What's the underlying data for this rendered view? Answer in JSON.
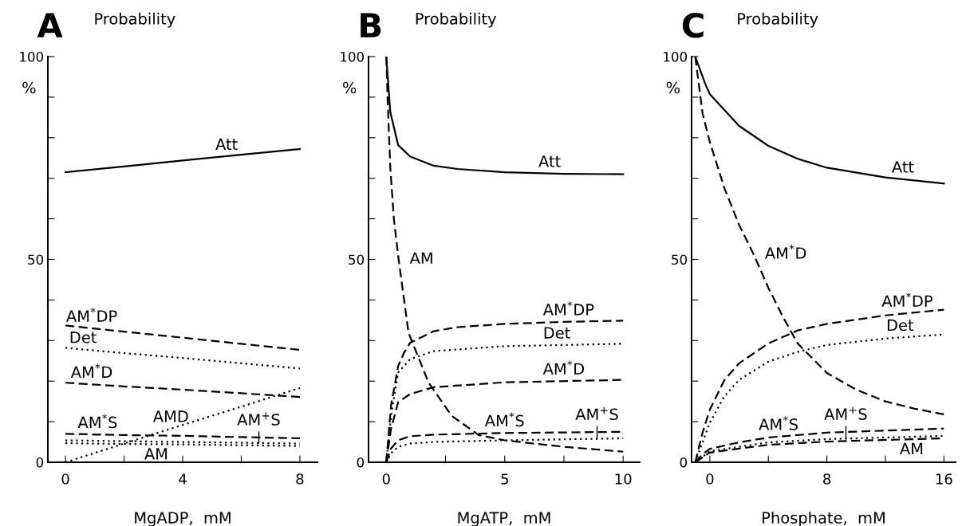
{
  "chart_data": [
    {
      "type": "line",
      "title": "A",
      "subtitle": "Probability",
      "xlabel": "MgADP,  mM",
      "ylabel": "%",
      "xlim": [
        -0.6,
        8.6
      ],
      "ylim": [
        0,
        100
      ],
      "xticks": [
        0,
        {
          "value": 2,
          "label": null
        },
        4,
        {
          "value": 6,
          "label": null
        },
        8
      ],
      "yticks": [
        0,
        {
          "value": 10,
          "label": null
        },
        {
          "value": 20,
          "label": null
        },
        {
          "value": 30,
          "label": null
        },
        {
          "value": 40,
          "label": null
        },
        50,
        {
          "value": 60,
          "label": null
        },
        {
          "value": 70,
          "label": null
        },
        {
          "value": 80,
          "label": null
        },
        {
          "value": 90,
          "label": null
        },
        100
      ],
      "grid": false,
      "x": [
        0,
        2,
        4,
        6,
        8
      ],
      "series": [
        {
          "color": "#000000",
          "line_style": "solid",
          "values": [
            71.5,
            72.9,
            74.4,
            75.8,
            77.2
          ]
        },
        {
          "color": "#000000",
          "line_style": "dashed",
          "values": [
            33.7,
            32.2,
            30.7,
            29.2,
            27.7
          ]
        },
        {
          "color": "#000000",
          "line_style": "dotted",
          "values": [
            28.2,
            26.9,
            25.7,
            24.4,
            23.1
          ]
        },
        {
          "color": "#000000",
          "line_style": "dashed",
          "values": [
            19.6,
            18.7,
            17.9,
            17.0,
            16.1
          ]
        },
        {
          "color": "#000000",
          "line_style": "dotted",
          "values": [
            0,
            4.6,
            9.2,
            13.7,
            18.3
          ]
        },
        {
          "color": "#000000",
          "line_style": "dashed",
          "values": [
            7.0,
            6.7,
            6.5,
            6.2,
            5.9
          ]
        },
        {
          "color": "#000000",
          "line_style": "dotted",
          "values": [
            5.4,
            5.2,
            5.0,
            4.8,
            4.6
          ]
        },
        {
          "color": "#000000",
          "line_style": "dotted",
          "values": [
            4.7,
            4.5,
            4.4,
            4.2,
            4.0
          ]
        }
      ],
      "annotations": [
        {
          "text": "Att",
          "x": 5.5,
          "y": 75.4
        },
        {
          "text": "AM$^{*}$DP",
          "x": 0.9,
          "y": 33.0
        },
        {
          "text": "Det",
          "x": 0.6,
          "y": 27.8
        },
        {
          "text": "AM$^{*}$D",
          "x": 0.9,
          "y": 19.2
        },
        {
          "text": "AMD",
          "x": 3.6,
          "y": 8.3
        },
        {
          "text": "AM$^{*}$S",
          "x": 1.1,
          "y": 6.8
        },
        {
          "text": "AM$^{+}$S",
          "x": 6.6,
          "y": 4.7
        },
        {
          "text": "AM",
          "x": 3.1,
          "y": 4.4
        }
      ]
    },
    {
      "type": "line",
      "title": "B",
      "subtitle": "Probability",
      "xlabel": "MgATP,  mM",
      "ylabel": "%",
      "xlim": [
        -0.75,
        10.7
      ],
      "ylim": [
        0,
        100
      ],
      "xticks": [
        0,
        {
          "value": 2.5,
          "label": null
        },
        5,
        {
          "value": 7.5,
          "label": null
        },
        10
      ],
      "yticks": [
        0,
        {
          "value": 10,
          "label": null
        },
        {
          "value": 20,
          "label": null
        },
        {
          "value": 30,
          "label": null
        },
        {
          "value": 40,
          "label": null
        },
        50,
        {
          "value": 60,
          "label": null
        },
        {
          "value": 70,
          "label": null
        },
        {
          "value": 80,
          "label": null
        },
        {
          "value": 90,
          "label": null
        },
        100
      ],
      "grid": false,
      "series": [
        {
          "color": "#000000",
          "line_style": "solid",
          "x": [
            0,
            0.17,
            0.5,
            1,
            2,
            3,
            5,
            7.5,
            10
          ],
          "values": [
            100,
            86.3,
            78.2,
            75.4,
            73.1,
            72.3,
            71.5,
            71.1,
            71.0
          ]
        },
        {
          "color": "#000000",
          "line_style": "dashed",
          "x": [
            0,
            0.06,
            0.17,
            0.32,
            0.52,
            0.94,
            1.78,
            2.75,
            3.9,
            5,
            7.5,
            10
          ],
          "values": [
            100,
            88.8,
            72.5,
            60,
            50,
            31.9,
            19.7,
            11.5,
            6.7,
            5.4,
            3.8,
            2.6
          ]
        },
        {
          "color": "#000000",
          "line_style": "dashed",
          "x": [
            0,
            0.2,
            0.5,
            0.75,
            1,
            2,
            3,
            5,
            7.5,
            10
          ],
          "values": [
            0,
            14,
            23.7,
            27,
            29.4,
            32.3,
            33.3,
            34.1,
            34.6,
            34.9
          ]
        },
        {
          "color": "#000000",
          "line_style": "dotted",
          "x": [
            0,
            0.2,
            0.5,
            1,
            2,
            5,
            10
          ],
          "values": [
            0,
            11.5,
            22.1,
            25.4,
            27.4,
            28.6,
            29.2
          ]
        },
        {
          "color": "#000000",
          "line_style": "dashed",
          "x": [
            0,
            0.2,
            0.5,
            1,
            2,
            5,
            10
          ],
          "values": [
            0,
            8.3,
            14.8,
            16.8,
            18.5,
            19.7,
            20.3
          ]
        },
        {
          "color": "#000000",
          "line_style": "dashed",
          "x": [
            0,
            0.2,
            0.5,
            1,
            2,
            5,
            10
          ],
          "values": [
            0,
            3.4,
            5.4,
            6.4,
            6.8,
            7.2,
            7.5
          ]
        },
        {
          "color": "#000000",
          "line_style": "dotted",
          "x": [
            0,
            0.2,
            0.5,
            1,
            2,
            5,
            10
          ],
          "values": [
            0,
            2.2,
            3.8,
            4.6,
            5.0,
            5.4,
            5.9
          ]
        }
      ],
      "annotations": [
        {
          "text": "Att",
          "x": 6.9,
          "y": 71.2
        },
        {
          "text": "AM",
          "x": 0.52,
          "y": 50
        },
        {
          "text": "AM$^{*}$DP",
          "x": 7.7,
          "y": 34.6
        },
        {
          "text": "Det",
          "x": 7.2,
          "y": 28.9
        },
        {
          "text": "AM$^{*}$D",
          "x": 7.5,
          "y": 20.0
        },
        {
          "text": "AM$^{*}$S",
          "x": 5.0,
          "y": 7.2
        },
        {
          "text": "AM$^{+}$S",
          "x": 8.9,
          "y": 5.8
        }
      ]
    },
    {
      "type": "line",
      "title": "C",
      "subtitle": "Probability",
      "xlabel": "Phosphate,  mM",
      "ylabel": "%",
      "xlim": [
        -1.25,
        16.8
      ],
      "ylim": [
        0,
        100
      ],
      "xticks": [
        0,
        {
          "value": 4,
          "label": null
        },
        8,
        {
          "value": 12,
          "label": null
        },
        16
      ],
      "yticks": [
        0,
        {
          "value": 10,
          "label": null
        },
        {
          "value": 20,
          "label": null
        },
        {
          "value": 30,
          "label": null
        },
        {
          "value": 40,
          "label": null
        },
        50,
        {
          "value": 60,
          "label": null
        },
        {
          "value": 70,
          "label": null
        },
        {
          "value": 80,
          "label": null
        },
        {
          "value": 90,
          "label": null
        },
        100
      ],
      "grid": false,
      "series": [
        {
          "color": "#000000",
          "line_style": "solid",
          "x": [
            -1,
            -0.34,
            0,
            2,
            4,
            6,
            8,
            12,
            16
          ],
          "values": [
            100,
            93.5,
            90.7,
            82.9,
            78,
            74.8,
            72.6,
            70.2,
            68.7
          ]
        },
        {
          "color": "#000000",
          "line_style": "dashed",
          "x": [
            -1,
            -0.5,
            0,
            1,
            2,
            3,
            4,
            5,
            6,
            8,
            10,
            12,
            14,
            16
          ],
          "values": [
            100,
            86,
            78.9,
            67.5,
            58.5,
            51.2,
            43,
            35.8,
            29.3,
            22,
            17.9,
            15,
            13.2,
            11.8
          ]
        },
        {
          "color": "#000000",
          "line_style": "dashed",
          "x": [
            -1,
            -0.5,
            0,
            1,
            2,
            4,
            6,
            8,
            12,
            16
          ],
          "values": [
            0,
            7.3,
            13,
            20.3,
            24.4,
            29.3,
            32.5,
            34.1,
            36.2,
            37.6
          ]
        },
        {
          "color": "#000000",
          "line_style": "dotted",
          "x": [
            -1,
            -0.5,
            0,
            1,
            2,
            4,
            6,
            8,
            12,
            16
          ],
          "values": [
            0,
            4.9,
            9.8,
            16.3,
            20.3,
            24.8,
            27.2,
            28.9,
            30.5,
            31.5
          ]
        },
        {
          "color": "#000000",
          "line_style": "dashed",
          "x": [
            -1,
            -0.5,
            0,
            2,
            4,
            8,
            16
          ],
          "values": [
            0,
            2,
            3.3,
            4.9,
            6.1,
            7.3,
            8.3
          ]
        },
        {
          "color": "#000000",
          "line_style": "dotted",
          "x": [
            -1,
            0,
            4,
            8,
            16
          ],
          "values": [
            0,
            2.7,
            4.9,
            5.7,
            6.5
          ]
        },
        {
          "color": "#000000",
          "line_style": "dashed",
          "x": [
            -1,
            0,
            4,
            8,
            16
          ],
          "values": [
            0,
            2.4,
            4.3,
            5.1,
            5.9
          ]
        }
      ],
      "annotations": [
        {
          "text": "Att",
          "x": 13.2,
          "y": 69.8
        },
        {
          "text": "AM$^{*}$D",
          "x": 3,
          "y": 51.2
        },
        {
          "text": "AM$^{*}$DP",
          "x": 13.5,
          "y": 36.7
        },
        {
          "text": "Det",
          "x": 13.0,
          "y": 30.8
        },
        {
          "text": "AM$^{*}$S",
          "x": 4.7,
          "y": 6.3
        },
        {
          "text": "AM$^{+}$S",
          "x": 9.3,
          "y": 5.8
        },
        {
          "text": "AM",
          "x": 13.8,
          "y": 5.7
        }
      ]
    }
  ]
}
